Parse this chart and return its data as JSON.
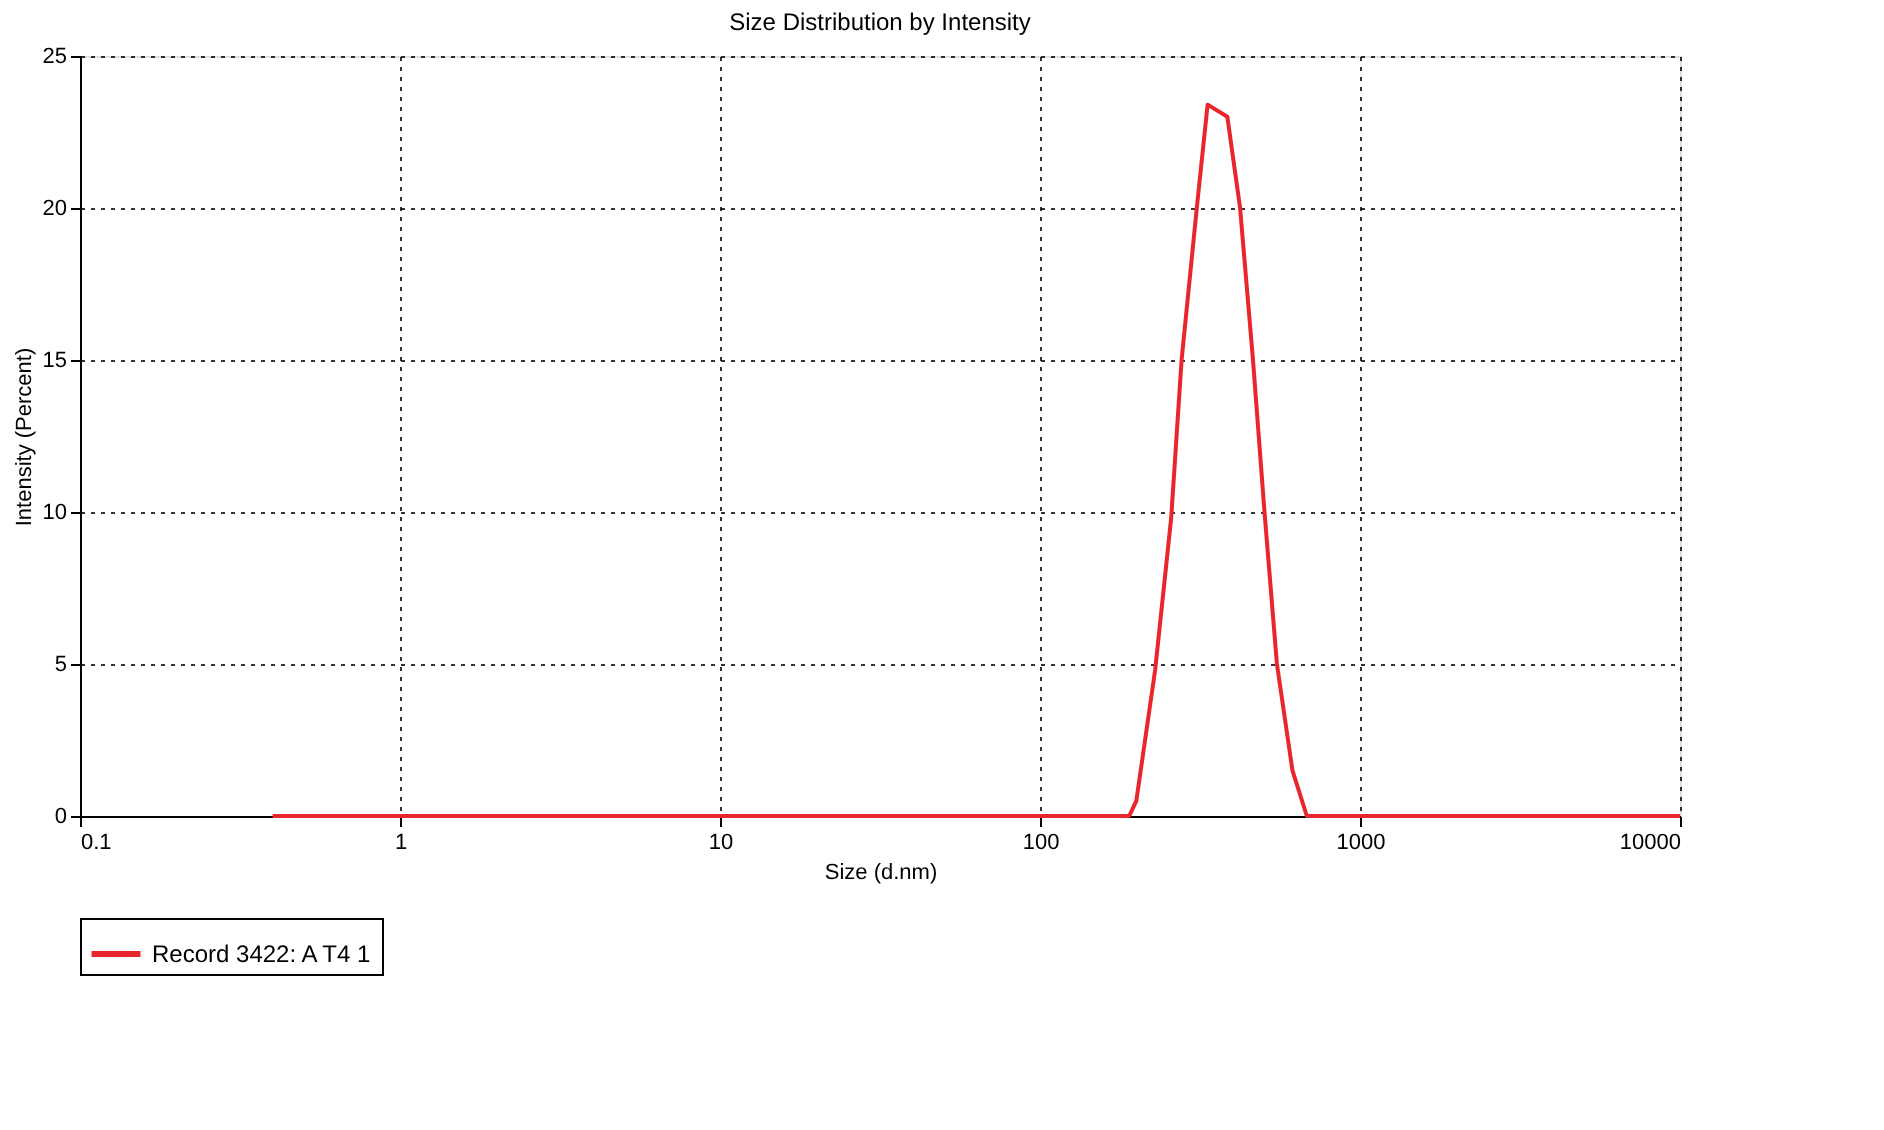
{
  "chart_data": {
    "type": "line",
    "title": "Size Distribution by Intensity",
    "xlabel": "Size (d.nm)",
    "ylabel": "Intensity (Percent)",
    "log": "x",
    "xlim": [
      0.1,
      10000
    ],
    "xticks": [
      0.1,
      1,
      10,
      100,
      1000,
      10000
    ],
    "ylim": [
      0,
      25
    ],
    "yticks": [
      0,
      5,
      10,
      15,
      20,
      25
    ],
    "grid": true,
    "legend": "bottom",
    "marker": "none",
    "line_style": "solid",
    "series": [
      {
        "name": "Record 3422: A T4 1",
        "color": "#e8262b",
        "x": [
          0.4,
          190,
          200,
          229,
          257,
          277,
          309,
          334,
          385,
          422,
          463,
          503,
          550,
          615,
          682,
          10000
        ],
        "values": [
          0,
          0,
          0.5,
          4.8,
          9.8,
          15,
          20,
          23.4,
          23,
          20,
          15,
          10,
          5,
          1.5,
          0,
          0
        ]
      }
    ]
  }
}
